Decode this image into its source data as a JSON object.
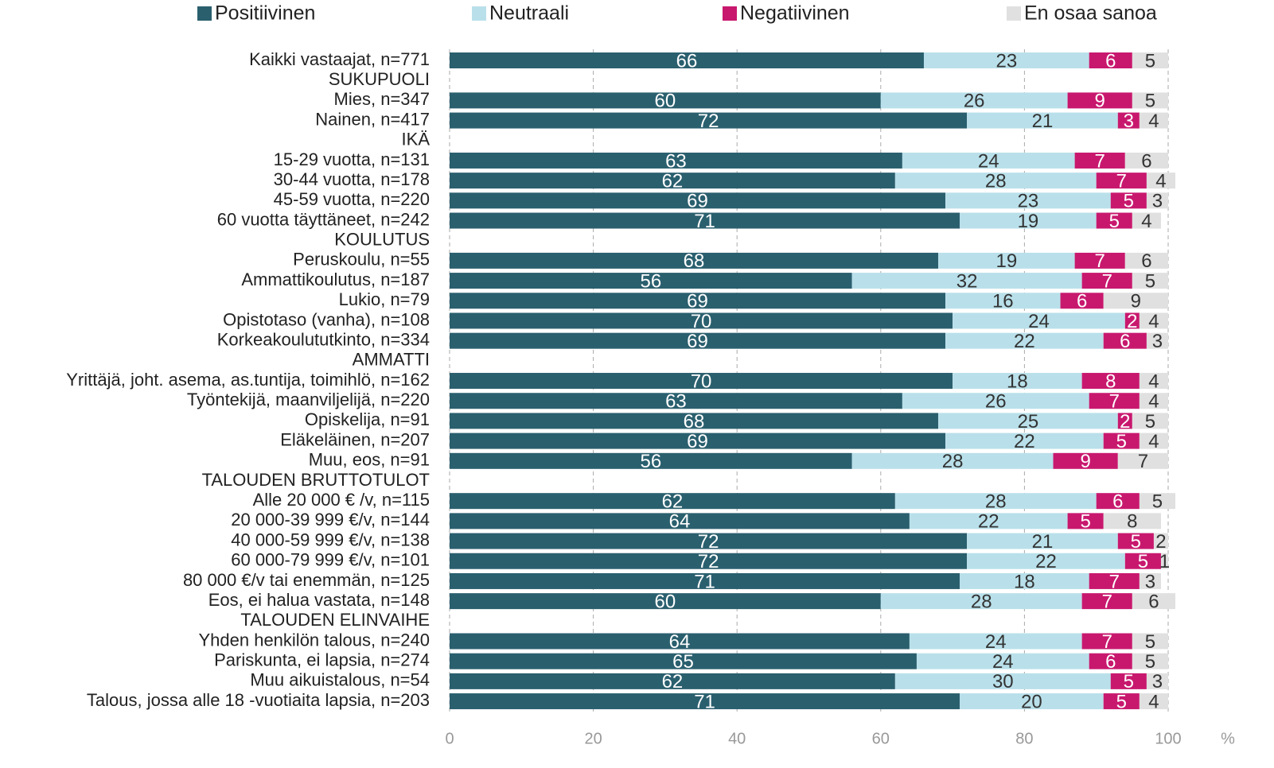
{
  "chart_data": {
    "type": "stacked_barh",
    "xlabel": "%",
    "categories": [
      "Kaikki vastaajat, n=771",
      "SUKUPUOLI",
      "Mies, n=347",
      "Nainen, n=417",
      "IKÄ",
      "15-29 vuotta, n=131",
      "30-44 vuotta, n=178",
      "45-59 vuotta, n=220",
      "60 vuotta täyttäneet, n=242",
      "KOULUTUS",
      "Peruskoulu, n=55",
      "Ammattikoulutus, n=187",
      "Lukio, n=79",
      "Opistotaso (vanha), n=108",
      "Korkeakoulututkinto, n=334",
      "AMMATTI",
      "Yrittäjä, joht. asema, as.tuntija, toimihlö, n=162",
      "Työntekijä, maanviljelijä, n=220",
      "Opiskelija, n=91",
      "Eläkeläinen, n=207",
      "Muu, eos, n=91",
      "TALOUDEN BRUTTOTULOT",
      "Alle 20 000 € /v, n=115",
      "20 000-39 999 €/v, n=144",
      "40 000-59 999 €/v, n=138",
      "60 000-79 999 €/v, n=101",
      "80 000 €/v tai enemmän, n=125",
      "Eos, ei halua vastata, n=148",
      "TALOUDEN ELINVAIHE",
      "Yhden henkilön talous, n=240",
      "Pariskunta, ei lapsia, n=274",
      "Muu aikuistalous, n=54",
      "Talous, jossa alle 18 -vuotiaita lapsia, n=203"
    ],
    "series": [
      {
        "name": "Positiivinen",
        "color": "#2a5f6e",
        "label_color": "#ffffff",
        "values": [
          66,
          null,
          60,
          72,
          null,
          63,
          62,
          69,
          71,
          null,
          68,
          56,
          69,
          70,
          69,
          null,
          70,
          63,
          68,
          69,
          56,
          null,
          62,
          64,
          72,
          72,
          71,
          60,
          null,
          64,
          65,
          62,
          71
        ]
      },
      {
        "name": "Neutraali",
        "color": "#b9e0ea",
        "label_color": "#333333",
        "values": [
          23,
          null,
          26,
          21,
          null,
          24,
          28,
          23,
          19,
          null,
          19,
          32,
          16,
          24,
          22,
          null,
          18,
          26,
          25,
          22,
          28,
          null,
          28,
          22,
          21,
          22,
          18,
          28,
          null,
          24,
          24,
          30,
          20
        ]
      },
      {
        "name": "Negatiivinen",
        "color": "#c8186e",
        "label_color": "#ffffff",
        "values": [
          6,
          null,
          9,
          3,
          null,
          7,
          7,
          5,
          5,
          null,
          7,
          7,
          6,
          2,
          6,
          null,
          8,
          7,
          2,
          5,
          9,
          null,
          6,
          5,
          5,
          5,
          7,
          7,
          null,
          7,
          6,
          5,
          5
        ]
      },
      {
        "name": "En osaa sanoa",
        "color": "#e0e0e0",
        "label_color": "#333333",
        "values": [
          5,
          null,
          5,
          4,
          null,
          6,
          4,
          3,
          4,
          null,
          6,
          5,
          9,
          4,
          3,
          null,
          4,
          4,
          5,
          4,
          7,
          null,
          5,
          8,
          2,
          1,
          3,
          6,
          null,
          5,
          5,
          3,
          4
        ]
      }
    ],
    "xlim": [
      0,
      100
    ],
    "xticks": [
      0,
      20,
      40,
      60,
      80,
      100
    ],
    "grid": true,
    "legend": "top"
  }
}
